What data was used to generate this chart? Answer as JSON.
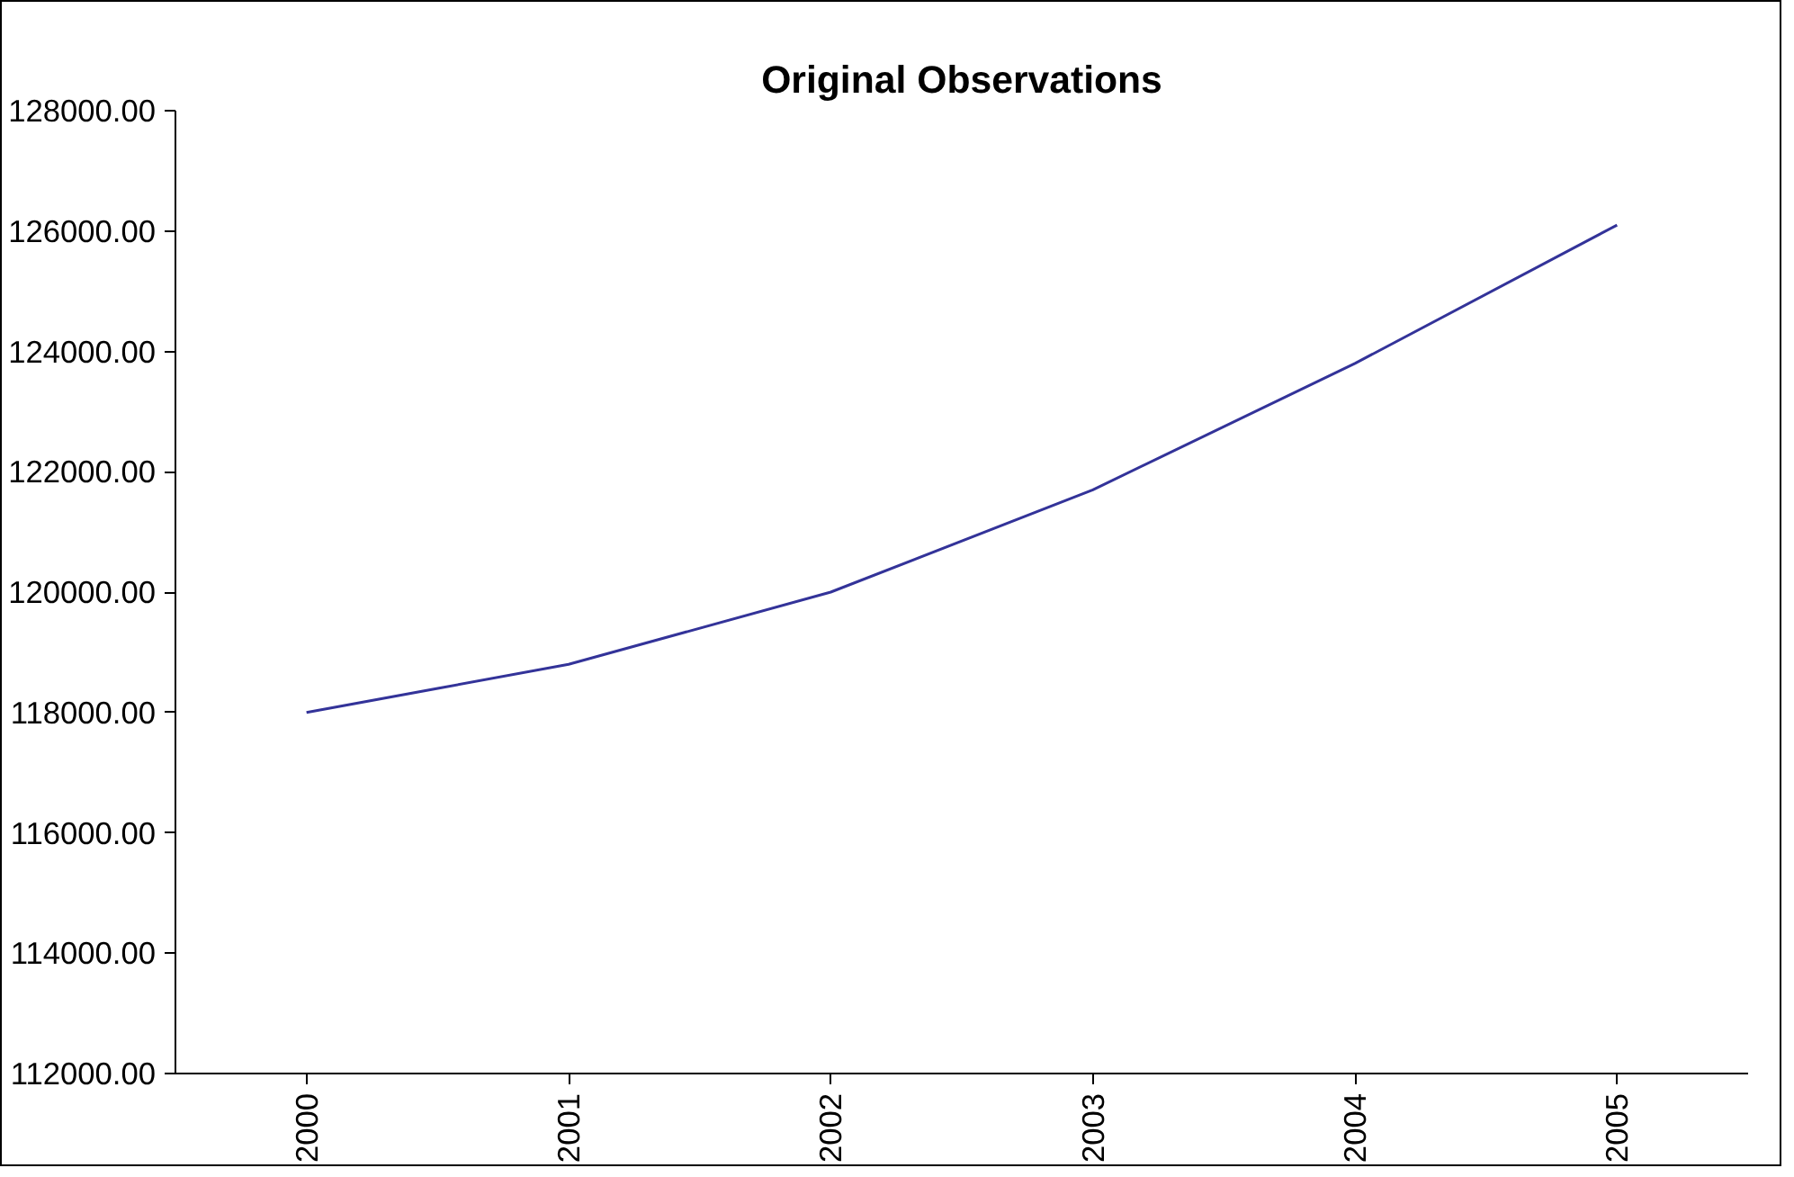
{
  "chart_data": {
    "type": "line",
    "title": "Original Observations",
    "categories": [
      "2000",
      "2001",
      "2002",
      "2003",
      "2004",
      "2005"
    ],
    "series": [
      {
        "color": "#333399",
        "values": [
          118000,
          118800,
          120000,
          121700,
          123800,
          126100
        ]
      }
    ],
    "ylim": [
      112000,
      128000
    ],
    "yticks": [
      {
        "value": 112000,
        "label": "112000.00"
      },
      {
        "value": 114000,
        "label": "114000.00"
      },
      {
        "value": 116000,
        "label": "116000.00"
      },
      {
        "value": 118000,
        "label": "118000.00"
      },
      {
        "value": 120000,
        "label": "120000.00"
      },
      {
        "value": 122000,
        "label": "122000.00"
      },
      {
        "value": 124000,
        "label": "124000.00"
      },
      {
        "value": 126000,
        "label": "126000.00"
      },
      {
        "value": 128000,
        "label": "128000.00"
      }
    ],
    "grid": false,
    "marker": "none",
    "line_style": "solid"
  }
}
